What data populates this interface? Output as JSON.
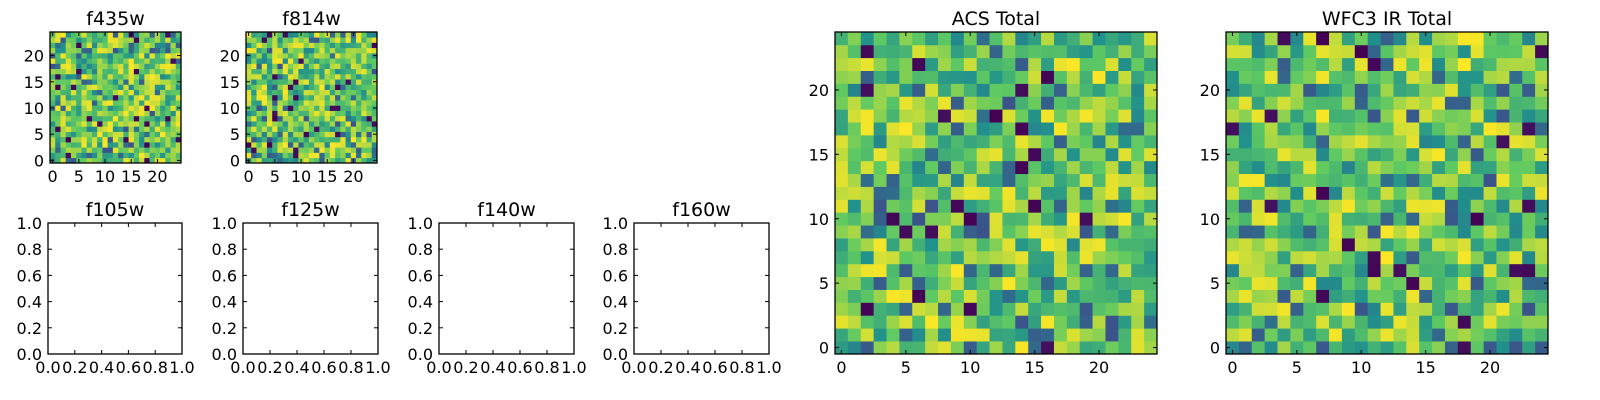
{
  "colors": {
    "viridis": [
      "#440154",
      "#3b528b",
      "#21918c",
      "#5ec962",
      "#fde725"
    ],
    "frame": "#000000",
    "background": "#ffffff"
  },
  "chart_data": [
    {
      "type": "heatmap",
      "title": "f435w",
      "rows": 25,
      "cols": 25,
      "seed": 11,
      "extent": [
        -0.5,
        24.5,
        -0.5,
        24.5
      ],
      "xticks": [
        0,
        5,
        10,
        15,
        20
      ],
      "yticks": [
        0,
        5,
        10,
        15,
        20
      ],
      "value_range": [
        0,
        1
      ],
      "colormap": "viridis"
    },
    {
      "type": "heatmap",
      "title": "f814w",
      "rows": 25,
      "cols": 25,
      "seed": 23,
      "extent": [
        -0.5,
        24.5,
        -0.5,
        24.5
      ],
      "xticks": [
        0,
        5,
        10,
        15,
        20
      ],
      "yticks": [
        0,
        5,
        10,
        15,
        20
      ],
      "value_range": [
        0,
        1
      ],
      "colormap": "viridis"
    },
    {
      "type": "empty",
      "title": "f105w",
      "xlim": [
        0,
        1
      ],
      "ylim": [
        0,
        1
      ],
      "xticks": [
        "0.0",
        "0.2",
        "0.4",
        "0.6",
        "0.8",
        "1.0"
      ],
      "yticks": [
        "0.0",
        "0.2",
        "0.4",
        "0.6",
        "0.8",
        "1.0"
      ]
    },
    {
      "type": "empty",
      "title": "f125w",
      "xlim": [
        0,
        1
      ],
      "ylim": [
        0,
        1
      ],
      "xticks": [
        "0.0",
        "0.2",
        "0.4",
        "0.6",
        "0.8",
        "1.0"
      ],
      "yticks": [
        "0.0",
        "0.2",
        "0.4",
        "0.6",
        "0.8",
        "1.0"
      ]
    },
    {
      "type": "empty",
      "title": "f140w",
      "xlim": [
        0,
        1
      ],
      "ylim": [
        0,
        1
      ],
      "xticks": [
        "0.0",
        "0.2",
        "0.4",
        "0.6",
        "0.8",
        "1.0"
      ],
      "yticks": [
        "0.0",
        "0.2",
        "0.4",
        "0.6",
        "0.8",
        "1.0"
      ]
    },
    {
      "type": "empty",
      "title": "f160w",
      "xlim": [
        0,
        1
      ],
      "ylim": [
        0,
        1
      ],
      "xticks": [
        "0.0",
        "0.2",
        "0.4",
        "0.6",
        "0.8",
        "1.0"
      ],
      "yticks": [
        "0.0",
        "0.2",
        "0.4",
        "0.6",
        "0.8",
        "1.0"
      ]
    },
    {
      "type": "heatmap",
      "title": "ACS Total",
      "rows": 25,
      "cols": 25,
      "seed": 37,
      "extent": [
        -0.5,
        24.5,
        -0.5,
        24.5
      ],
      "xticks": [
        0,
        5,
        10,
        15,
        20
      ],
      "yticks": [
        0,
        5,
        10,
        15,
        20
      ],
      "value_range": [
        0,
        1
      ],
      "colormap": "viridis"
    },
    {
      "type": "heatmap",
      "title": "WFC3 IR Total",
      "rows": 25,
      "cols": 25,
      "seed": 53,
      "extent": [
        -0.5,
        24.5,
        -0.5,
        24.5
      ],
      "xticks": [
        0,
        5,
        10,
        15,
        20
      ],
      "yticks": [
        0,
        5,
        10,
        15,
        20
      ],
      "value_range": [
        0,
        1
      ],
      "colormap": "viridis"
    }
  ]
}
